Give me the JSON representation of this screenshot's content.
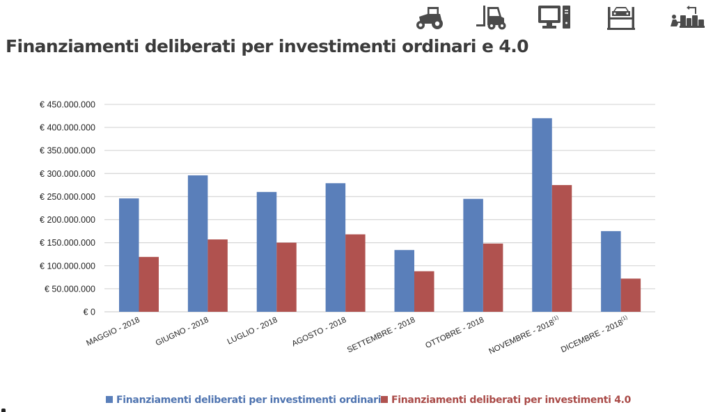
{
  "header": {
    "title": "Finanziamenti deliberati per investimenti ordinari e 4.0",
    "icons": [
      "tractor-icon",
      "forklift-icon",
      "computer-icon",
      "car-lift-icon",
      "industrial-workshop-icon"
    ]
  },
  "colors": {
    "series_ordinari": "#5a7fba",
    "series_4_0": "#b0524f",
    "legend_ordinari_text": "#4f74b0",
    "legend_4_0_text": "#a94a47",
    "gridline": "#d9d9d9",
    "axis_text": "#1f1f1f",
    "icon": "#4a4a4a"
  },
  "chart_data": {
    "type": "bar",
    "title": "Finanziamenti deliberati per investimenti ordinari e 4.0",
    "xlabel": "",
    "ylabel": "",
    "ylim": [
      0,
      450000000
    ],
    "ytick_step": 50000000,
    "ytick_labels": [
      "€ 0",
      "€ 50.000.000",
      "€ 100.000.000",
      "€ 150.000.000",
      "€ 200.000.000",
      "€ 250.000.000",
      "€ 300.000.000",
      "€ 350.000.000",
      "€ 400.000.000",
      "€ 450.000.000"
    ],
    "grid": true,
    "legend_position": "bottom",
    "categories": [
      "MAGGIO - 2018",
      "GIUGNO - 2018",
      "LUGLIO - 2018",
      "AGOSTO - 2018",
      "SETTEMBRE - 2018",
      "OTTOBRE - 2018",
      "NOVEMBRE - 2018",
      "DICEMBRE - 2018"
    ],
    "category_superscripts": [
      "",
      "",
      "",
      "",
      "",
      "",
      "(1)",
      "(1)"
    ],
    "series": [
      {
        "name": "Finanziamenti deliberati per investimenti ordinari",
        "values": [
          246000000,
          296000000,
          260000000,
          279000000,
          134000000,
          245000000,
          420000000,
          175000000
        ]
      },
      {
        "name": "Finanziamenti deliberati per investimenti 4.0",
        "values": [
          119000000,
          157000000,
          150000000,
          168000000,
          88000000,
          148000000,
          275000000,
          72000000
        ]
      }
    ]
  }
}
